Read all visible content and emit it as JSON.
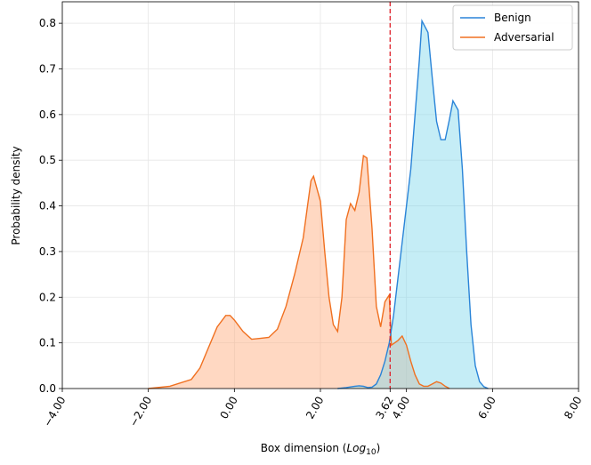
{
  "chart_data": {
    "type": "line",
    "xlabel_parts": [
      "Box dimension (",
      "Log",
      "10",
      ")"
    ],
    "ylabel": "Probability density",
    "xlim": [
      -4,
      8
    ],
    "ylim": [
      0,
      0.847
    ],
    "xticks": [
      {
        "value": -4,
        "label": "−4.00"
      },
      {
        "value": -2,
        "label": "−2.00"
      },
      {
        "value": 0,
        "label": "0.00"
      },
      {
        "value": 2,
        "label": "2.00"
      },
      {
        "value": 3.62,
        "label": "3.62"
      },
      {
        "value": 4,
        "label": "4.00"
      },
      {
        "value": 6,
        "label": "6.00"
      },
      {
        "value": 8,
        "label": "8.00"
      }
    ],
    "yticks": [
      {
        "value": 0,
        "label": "0.0"
      },
      0.1,
      0.2,
      0.3,
      0.4,
      0.5,
      0.6,
      0.7,
      0.8
    ],
    "grid": true,
    "legend": "upper right",
    "threshold": {
      "value": 3.62,
      "color": "#e0202a"
    },
    "series": [
      {
        "name": "Benign",
        "color": "#2a84d8",
        "fill": "#7fd6ea",
        "x": [
          2.4,
          2.6,
          2.8,
          2.9,
          3.0,
          3.1,
          3.2,
          3.3,
          3.4,
          3.5,
          3.6,
          3.7,
          3.8,
          3.9,
          4.0,
          4.1,
          4.2,
          4.3,
          4.36,
          4.5,
          4.6,
          4.7,
          4.8,
          4.9,
          5.0,
          5.08,
          5.2,
          5.3,
          5.4,
          5.5,
          5.6,
          5.7,
          5.8,
          5.9
        ],
        "values": [
          0,
          0.002,
          0.005,
          0.006,
          0.005,
          0.002,
          0.003,
          0.01,
          0.03,
          0.06,
          0.1,
          0.16,
          0.24,
          0.32,
          0.4,
          0.48,
          0.6,
          0.72,
          0.805,
          0.78,
          0.68,
          0.585,
          0.545,
          0.545,
          0.59,
          0.63,
          0.61,
          0.48,
          0.3,
          0.14,
          0.05,
          0.015,
          0.004,
          0
        ]
      },
      {
        "name": "Adversarial",
        "color": "#f07020",
        "fill": "#ffa878",
        "x": [
          -2,
          -1.5,
          -1,
          -0.8,
          -0.6,
          -0.4,
          -0.2,
          -0.1,
          0,
          0.2,
          0.4,
          0.6,
          0.8,
          1.0,
          1.2,
          1.4,
          1.6,
          1.7,
          1.78,
          1.84,
          2.0,
          2.1,
          2.2,
          2.3,
          2.4,
          2.5,
          2.6,
          2.7,
          2.8,
          2.9,
          3.0,
          3.08,
          3.2,
          3.3,
          3.4,
          3.5,
          3.6,
          3.65,
          3.8,
          3.9,
          4.0,
          4.1,
          4.2,
          4.3,
          4.4,
          4.5,
          4.6,
          4.7,
          4.8,
          4.9,
          5.0
        ],
        "values": [
          0,
          0.005,
          0.02,
          0.045,
          0.09,
          0.135,
          0.16,
          0.16,
          0.15,
          0.125,
          0.108,
          0.11,
          0.112,
          0.13,
          0.18,
          0.25,
          0.33,
          0.4,
          0.455,
          0.465,
          0.41,
          0.3,
          0.2,
          0.14,
          0.125,
          0.2,
          0.37,
          0.405,
          0.39,
          0.43,
          0.51,
          0.505,
          0.35,
          0.18,
          0.135,
          0.19,
          0.205,
          0.095,
          0.105,
          0.115,
          0.095,
          0.06,
          0.03,
          0.01,
          0.005,
          0.005,
          0.01,
          0.015,
          0.012,
          0.005,
          0
        ]
      }
    ]
  }
}
